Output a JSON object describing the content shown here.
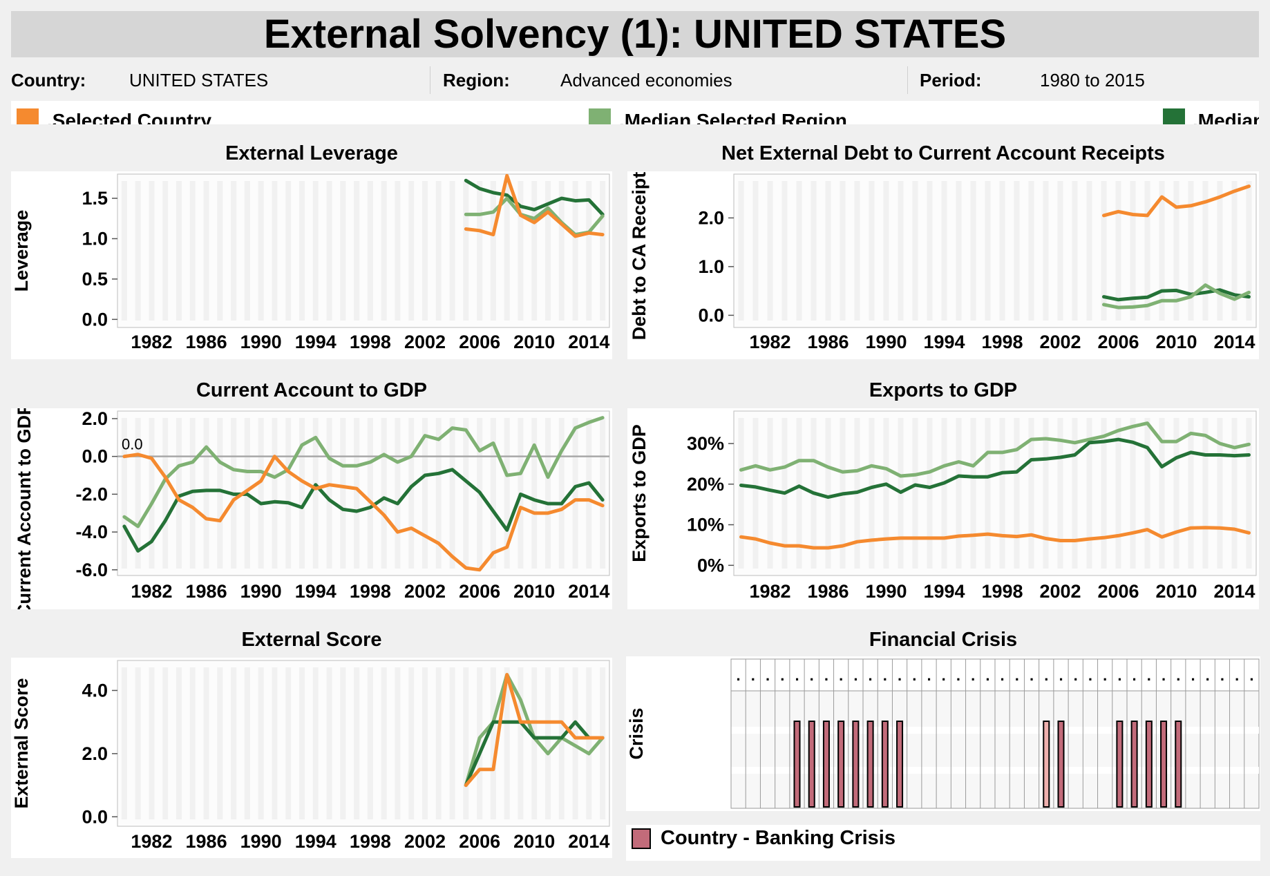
{
  "title": "External Solvency (1): UNITED STATES",
  "info": {
    "country_label": "Country:",
    "country_value": "UNITED STATES",
    "region_label": "Region:",
    "region_value": "Advanced economies",
    "period_label": "Period:",
    "period_value": "1980 to 2015"
  },
  "legend": [
    {
      "label": ".Selected Country",
      "color": "#f58a2f"
    },
    {
      "label": ".Median Selected Region",
      "color": "#7fb173"
    },
    {
      "label": ".Median",
      "color": "#247237"
    }
  ],
  "colors": {
    "country": "#f58a2f",
    "region": "#7fb173",
    "median": "#247237",
    "crisis_fill": "#c26b7a",
    "crisis_fill_light": "#eeb0ae",
    "zero_line": "#a8a8a8"
  },
  "x_ticks": [
    "1982",
    "1986",
    "1990",
    "1994",
    "1998",
    "2002",
    "2006",
    "2010",
    "2014"
  ],
  "crisis_legend_label": "Country - Banking Crisis",
  "chart_data": [
    {
      "id": "leverage",
      "type": "line",
      "title": "External Leverage",
      "ylabel": "Leverage",
      "xlim": [
        1980,
        2015
      ],
      "ylim": [
        -0.1,
        1.8
      ],
      "y_ticks": [
        0.0,
        0.5,
        1.0,
        1.5
      ],
      "y_tick_labels": [
        "0.0",
        "0.5",
        "1.0",
        "1.5"
      ],
      "series": [
        {
          "key": "median",
          "x": [
            2005,
            2006,
            2007,
            2008,
            2009,
            2010,
            2011,
            2012,
            2013,
            2014,
            2015
          ],
          "values": [
            1.72,
            1.62,
            1.57,
            1.54,
            1.4,
            1.36,
            1.43,
            1.5,
            1.47,
            1.48,
            1.3
          ]
        },
        {
          "key": "region",
          "x": [
            2005,
            2006,
            2007,
            2008,
            2009,
            2010,
            2011,
            2012,
            2013,
            2014,
            2015
          ],
          "values": [
            1.3,
            1.3,
            1.33,
            1.5,
            1.3,
            1.25,
            1.38,
            1.2,
            1.05,
            1.08,
            1.28
          ]
        },
        {
          "key": "country",
          "x": [
            2005,
            2006,
            2007,
            2008,
            2009,
            2010,
            2011,
            2012,
            2013,
            2014,
            2015
          ],
          "values": [
            1.12,
            1.1,
            1.05,
            1.78,
            1.29,
            1.2,
            1.33,
            1.18,
            1.03,
            1.07,
            1.05
          ]
        }
      ]
    },
    {
      "id": "debt_ca",
      "type": "line",
      "title": "Net External Debt to Current Account Receipts",
      "ylabel": "Debt to CA Receipts",
      "xlim": [
        1980,
        2015
      ],
      "ylim": [
        -0.25,
        2.9
      ],
      "y_ticks": [
        0.0,
        1.0,
        2.0
      ],
      "y_tick_labels": [
        "0.0",
        "1.0",
        "2.0"
      ],
      "series": [
        {
          "key": "country",
          "x": [
            2005,
            2006,
            2007,
            2008,
            2009,
            2010,
            2011,
            2012,
            2013,
            2014,
            2015
          ],
          "values": [
            2.05,
            2.13,
            2.07,
            2.05,
            2.43,
            2.22,
            2.25,
            2.33,
            2.43,
            2.55,
            2.65
          ]
        },
        {
          "key": "median",
          "x": [
            2005,
            2006,
            2007,
            2008,
            2009,
            2010,
            2011,
            2012,
            2013,
            2014,
            2015
          ],
          "values": [
            0.38,
            0.32,
            0.35,
            0.37,
            0.5,
            0.51,
            0.43,
            0.47,
            0.52,
            0.42,
            0.38
          ]
        },
        {
          "key": "region",
          "x": [
            2005,
            2006,
            2007,
            2008,
            2009,
            2010,
            2011,
            2012,
            2013,
            2014,
            2015
          ],
          "values": [
            0.22,
            0.16,
            0.17,
            0.2,
            0.3,
            0.3,
            0.38,
            0.62,
            0.45,
            0.33,
            0.47
          ]
        }
      ]
    },
    {
      "id": "ca_gdp",
      "type": "line",
      "title": "Current Account to GDP",
      "ylabel": "Current Account to GDP (%)",
      "annotation": "0.0",
      "xlim": [
        1980,
        2015
      ],
      "ylim": [
        -6.3,
        2.4
      ],
      "y_ticks": [
        2.0,
        0.0,
        -2.0,
        -4.0,
        -6.0
      ],
      "y_tick_labels": [
        "2.0",
        "0.0",
        "-2.0",
        "-4.0",
        "-6.0"
      ],
      "zero_line": true,
      "series": [
        {
          "key": "region",
          "x": [
            1980,
            1981,
            1982,
            1983,
            1984,
            1985,
            1986,
            1987,
            1988,
            1989,
            1990,
            1991,
            1992,
            1993,
            1994,
            1995,
            1996,
            1997,
            1998,
            1999,
            2000,
            2001,
            2002,
            2003,
            2004,
            2005,
            2006,
            2007,
            2008,
            2009,
            2010,
            2011,
            2012,
            2013,
            2014,
            2015
          ],
          "values": [
            -3.2,
            -3.7,
            -2.5,
            -1.2,
            -0.5,
            -0.3,
            0.5,
            -0.3,
            -0.7,
            -0.8,
            -0.8,
            -1.1,
            -0.7,
            0.6,
            1.0,
            -0.1,
            -0.5,
            -0.5,
            -0.3,
            0.1,
            -0.3,
            0.0,
            1.1,
            0.9,
            1.5,
            1.4,
            0.3,
            0.7,
            -1.0,
            -0.9,
            0.6,
            -1.1,
            0.3,
            1.5,
            1.8,
            2.05
          ]
        },
        {
          "key": "median",
          "x": [
            1980,
            1981,
            1982,
            1983,
            1984,
            1985,
            1986,
            1987,
            1988,
            1989,
            1990,
            1991,
            1992,
            1993,
            1994,
            1995,
            1996,
            1997,
            1998,
            1999,
            2000,
            2001,
            2002,
            2003,
            2004,
            2005,
            2006,
            2007,
            2008,
            2009,
            2010,
            2011,
            2012,
            2013,
            2014,
            2015
          ],
          "values": [
            -3.7,
            -5.0,
            -4.5,
            -3.4,
            -2.1,
            -1.85,
            -1.8,
            -1.8,
            -2.0,
            -2.0,
            -2.5,
            -2.4,
            -2.45,
            -2.7,
            -1.5,
            -2.3,
            -2.8,
            -2.9,
            -2.7,
            -2.2,
            -2.5,
            -1.6,
            -1.0,
            -0.9,
            -0.7,
            -1.3,
            -1.9,
            -2.9,
            -3.9,
            -2.0,
            -2.3,
            -2.5,
            -2.5,
            -1.6,
            -1.4,
            -2.3
          ]
        },
        {
          "key": "country",
          "x": [
            1980,
            1981,
            1982,
            1983,
            1984,
            1985,
            1986,
            1987,
            1988,
            1989,
            1990,
            1991,
            1992,
            1993,
            1994,
            1995,
            1996,
            1997,
            1998,
            1999,
            2000,
            2001,
            2002,
            2003,
            2004,
            2005,
            2006,
            2007,
            2008,
            2009,
            2010,
            2011,
            2012,
            2013,
            2014,
            2015
          ],
          "values": [
            0.0,
            0.1,
            -0.1,
            -1.1,
            -2.3,
            -2.7,
            -3.3,
            -3.4,
            -2.3,
            -1.8,
            -1.3,
            0.0,
            -0.8,
            -1.3,
            -1.7,
            -1.5,
            -1.6,
            -1.7,
            -2.4,
            -3.1,
            -4.0,
            -3.8,
            -4.2,
            -4.6,
            -5.3,
            -5.9,
            -6.0,
            -5.1,
            -4.8,
            -2.7,
            -3.0,
            -3.0,
            -2.8,
            -2.3,
            -2.3,
            -2.6
          ]
        }
      ]
    },
    {
      "id": "exports_gdp",
      "type": "line",
      "title": "Exports to GDP",
      "ylabel": "Exports to GDP",
      "xlim": [
        1980,
        2015
      ],
      "ylim": [
        -2.5,
        38
      ],
      "y_ticks": [
        0,
        10,
        20,
        30
      ],
      "y_tick_labels": [
        "0%",
        "10%",
        "20%",
        "30%"
      ],
      "series": [
        {
          "key": "region",
          "x": [
            1980,
            1981,
            1982,
            1983,
            1984,
            1985,
            1986,
            1987,
            1988,
            1989,
            1990,
            1991,
            1992,
            1993,
            1994,
            1995,
            1996,
            1997,
            1998,
            1999,
            2000,
            2001,
            2002,
            2003,
            2004,
            2005,
            2006,
            2007,
            2008,
            2009,
            2010,
            2011,
            2012,
            2013,
            2014,
            2015
          ],
          "values": [
            23.5,
            24.5,
            23.5,
            24.2,
            25.8,
            25.8,
            24.2,
            23.0,
            23.3,
            24.5,
            23.8,
            22.0,
            22.3,
            23.0,
            24.5,
            25.5,
            24.5,
            27.8,
            27.8,
            28.5,
            31.0,
            31.2,
            30.8,
            30.2,
            31.0,
            31.8,
            33.2,
            34.2,
            35.0,
            30.5,
            30.5,
            32.5,
            32.0,
            30.0,
            29.0,
            29.8
          ]
        },
        {
          "key": "median",
          "x": [
            1980,
            1981,
            1982,
            1983,
            1984,
            1985,
            1986,
            1987,
            1988,
            1989,
            1990,
            1991,
            1992,
            1993,
            1994,
            1995,
            1996,
            1997,
            1998,
            1999,
            2000,
            2001,
            2002,
            2003,
            2004,
            2005,
            2006,
            2007,
            2008,
            2009,
            2010,
            2011,
            2012,
            2013,
            2014,
            2015
          ],
          "values": [
            19.7,
            19.3,
            18.5,
            17.8,
            19.5,
            17.8,
            16.8,
            17.6,
            18.0,
            19.2,
            20.0,
            18.0,
            19.8,
            19.2,
            20.3,
            22.0,
            21.8,
            21.8,
            22.8,
            23.0,
            26.0,
            26.2,
            26.6,
            27.2,
            30.2,
            30.5,
            31.0,
            30.3,
            29.0,
            24.3,
            26.5,
            27.8,
            27.2,
            27.2,
            27.0,
            27.2
          ]
        },
        {
          "key": "country",
          "x": [
            1980,
            1981,
            1982,
            1983,
            1984,
            1985,
            1986,
            1987,
            1988,
            1989,
            1990,
            1991,
            1992,
            1993,
            1994,
            1995,
            1996,
            1997,
            1998,
            1999,
            2000,
            2001,
            2002,
            2003,
            2004,
            2005,
            2006,
            2007,
            2008,
            2009,
            2010,
            2011,
            2012,
            2013,
            2014,
            2015
          ],
          "values": [
            7.0,
            6.5,
            5.5,
            4.8,
            4.8,
            4.3,
            4.3,
            4.8,
            5.8,
            6.2,
            6.5,
            6.7,
            6.7,
            6.7,
            6.7,
            7.2,
            7.4,
            7.7,
            7.3,
            7.1,
            7.5,
            6.6,
            6.1,
            6.1,
            6.5,
            6.8,
            7.3,
            8.0,
            8.8,
            7.0,
            8.2,
            9.2,
            9.3,
            9.2,
            8.9,
            8.0
          ]
        }
      ]
    },
    {
      "id": "external_score",
      "type": "line",
      "title": "External Score",
      "ylabel": "External Score",
      "xlim": [
        1980,
        2015
      ],
      "ylim": [
        -0.3,
        4.95
      ],
      "y_ticks": [
        0.0,
        2.0,
        4.0
      ],
      "y_tick_labels": [
        "0.0",
        "2.0",
        "4.0"
      ],
      "series": [
        {
          "key": "region",
          "x": [
            2005,
            2006,
            2007,
            2008,
            2009,
            2010,
            2011,
            2012,
            2013,
            2014,
            2015
          ],
          "values": [
            1.0,
            2.5,
            3.0,
            4.5,
            3.7,
            2.5,
            2.0,
            2.5,
            2.25,
            2.0,
            2.5
          ]
        },
        {
          "key": "median",
          "x": [
            2005,
            2006,
            2007,
            2008,
            2009,
            2010,
            2011,
            2012,
            2013,
            2014,
            2015
          ],
          "values": [
            1.0,
            2.0,
            3.0,
            3.0,
            3.0,
            2.5,
            2.5,
            2.5,
            3.0,
            2.5,
            2.5
          ]
        },
        {
          "key": "country",
          "x": [
            2005,
            2006,
            2007,
            2008,
            2009,
            2010,
            2011,
            2012,
            2013,
            2014,
            2015
          ],
          "values": [
            1.0,
            1.5,
            1.5,
            4.5,
            3.0,
            3.0,
            3.0,
            3.0,
            2.5,
            2.5,
            2.5
          ]
        }
      ]
    },
    {
      "id": "financial_crisis",
      "type": "bar",
      "title": "Financial Crisis",
      "ylabel": "Crisis",
      "xlim": [
        1980,
        2015
      ],
      "header_marker": ".",
      "crisis_years": [
        1984,
        1985,
        1986,
        1987,
        1988,
        1989,
        1990,
        1991,
        2001,
        2002,
        2006,
        2007,
        2008,
        2009,
        2010
      ],
      "crisis_shade": [
        "dark",
        "dark",
        "dark",
        "dark",
        "dark",
        "dark",
        "dark",
        "dark",
        "light",
        "dark",
        "dark",
        "dark",
        "dark",
        "dark",
        "dark"
      ]
    }
  ]
}
